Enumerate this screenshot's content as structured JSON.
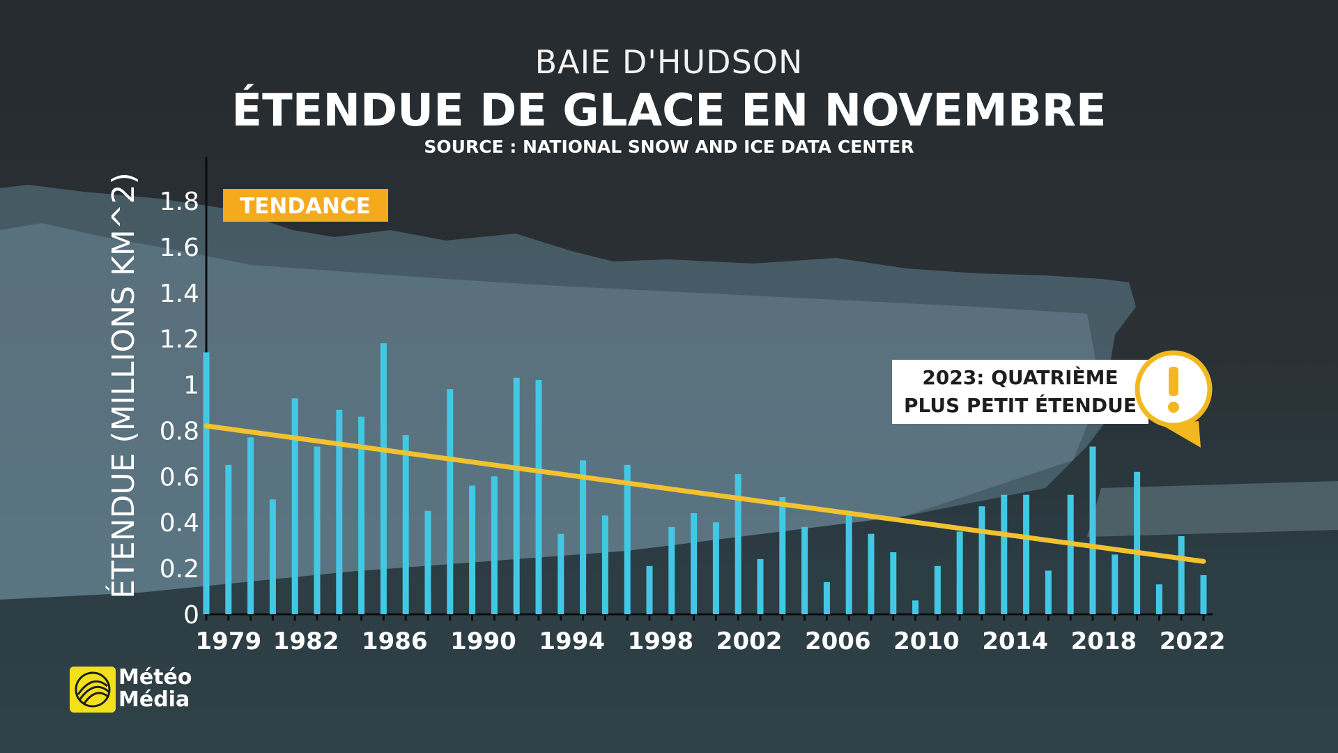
{
  "header": {
    "region": "BAIE D'HUDSON",
    "title": "ÉTENDUE DE GLACE EN NOVEMBRE",
    "source": "SOURCE : NATIONAL SNOW AND ICE DATA CENTER"
  },
  "legend_label": "TENDANCE",
  "callout": {
    "line1": "2023: QUATRIÈME",
    "line2": "PLUS PETIT ÉTENDUE",
    "icon": "exclamation-icon"
  },
  "logo": {
    "line1": "Météo",
    "line2": "Média"
  },
  "colors": {
    "bars": "#42c8e4",
    "trend": "#f2c230",
    "legend_bg": "#f5a91c",
    "accent": "#f3b81f"
  },
  "chart_data": {
    "type": "bar",
    "ylabel": "ÉTENDUE (MILLIONS KM^2)",
    "xlabel": "",
    "ylim": [
      0,
      1.8
    ],
    "yticks": [
      "0",
      "0.2",
      "0.4",
      "0.6",
      "0.8",
      "1",
      "1.2",
      "1.4",
      "1.6",
      "1.8"
    ],
    "ytick_values": [
      0,
      0.2,
      0.4,
      0.6,
      0.8,
      1.0,
      1.2,
      1.4,
      1.6,
      1.8
    ],
    "xtick_labels": [
      "1979",
      "1982",
      "1986",
      "1990",
      "1994",
      "1998",
      "2002",
      "2006",
      "2010",
      "2014",
      "2018",
      "2022"
    ],
    "xtick_years": [
      1979,
      1982.5,
      1986.5,
      1990.5,
      1994.5,
      1998.5,
      2002.5,
      2006.5,
      2010.5,
      2014.5,
      2018.5,
      2022.5
    ],
    "categories": [
      1978,
      1979,
      1980,
      1981,
      1982,
      1983,
      1984,
      1985,
      1986,
      1987,
      1988,
      1989,
      1990,
      1991,
      1992,
      1993,
      1994,
      1995,
      1996,
      1997,
      1998,
      1999,
      2000,
      2001,
      2002,
      2003,
      2004,
      2005,
      2006,
      2007,
      2008,
      2009,
      2010,
      2011,
      2012,
      2013,
      2014,
      2015,
      2016,
      2017,
      2018,
      2019,
      2020,
      2021,
      2022,
      2023
    ],
    "values": [
      1.14,
      0.65,
      0.77,
      0.5,
      0.94,
      0.73,
      0.89,
      0.86,
      1.18,
      0.78,
      0.45,
      0.98,
      0.56,
      0.6,
      1.03,
      1.02,
      0.35,
      0.67,
      0.43,
      0.65,
      0.21,
      0.38,
      0.44,
      0.4,
      0.61,
      0.24,
      0.51,
      0.38,
      0.14,
      0.45,
      0.35,
      0.27,
      0.06,
      0.21,
      0.36,
      0.47,
      0.52,
      0.52,
      0.19,
      0.52,
      0.73,
      0.26,
      0.62,
      0.13,
      0.34,
      0.17
    ],
    "trend": {
      "x": [
        1978,
        2023
      ],
      "y": [
        0.82,
        0.23
      ],
      "name": "TENDANCE"
    }
  }
}
